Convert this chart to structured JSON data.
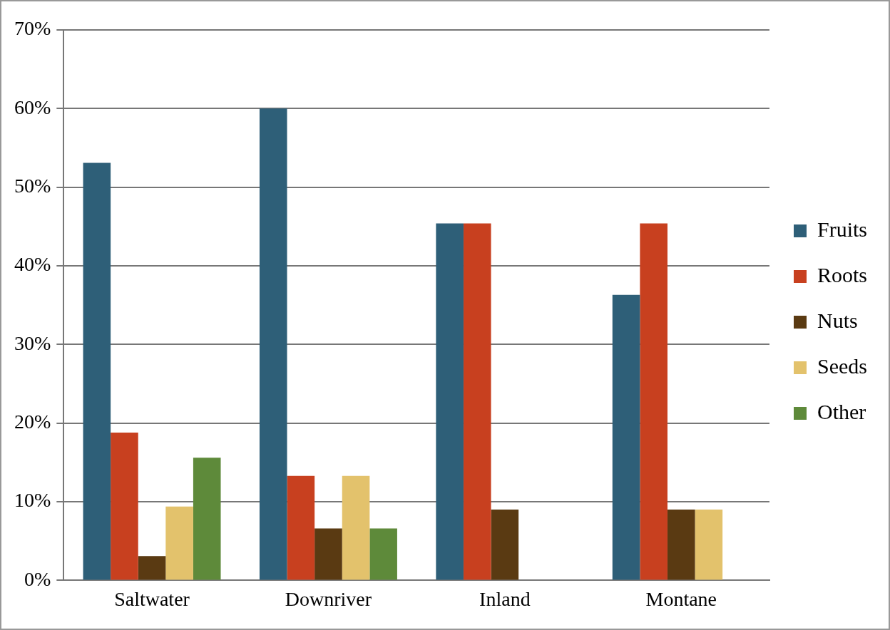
{
  "chart_data": {
    "type": "bar",
    "categories": [
      "Saltwater",
      "Downriver",
      "Inland",
      "Montane"
    ],
    "series": [
      {
        "name": "Fruits",
        "color": "#2e5f78",
        "values": [
          53.1,
          60,
          45.4,
          36.3
        ]
      },
      {
        "name": "Roots",
        "color": "#c8401f",
        "values": [
          18.8,
          13.3,
          45.4,
          45.4
        ]
      },
      {
        "name": "Nuts",
        "color": "#5a3a12",
        "values": [
          3.1,
          6.6,
          9.0,
          9.0
        ]
      },
      {
        "name": "Seeds",
        "color": "#e3c26c",
        "values": [
          9.4,
          13.3,
          0,
          9.0
        ]
      },
      {
        "name": "Other",
        "color": "#5e8a3a",
        "values": [
          15.6,
          6.6,
          0,
          0
        ]
      }
    ],
    "ylim": [
      0,
      70
    ],
    "yticks": [
      {
        "value": 0,
        "label": "0%"
      },
      {
        "value": 10,
        "label": "10%"
      },
      {
        "value": 20,
        "label": "20%"
      },
      {
        "value": 30,
        "label": "30%"
      },
      {
        "value": 40,
        "label": "40%"
      },
      {
        "value": 50,
        "label": "50%"
      },
      {
        "value": 60,
        "label": "60%"
      },
      {
        "value": 70,
        "label": "70%"
      }
    ],
    "grid": "y",
    "legend": "right"
  }
}
